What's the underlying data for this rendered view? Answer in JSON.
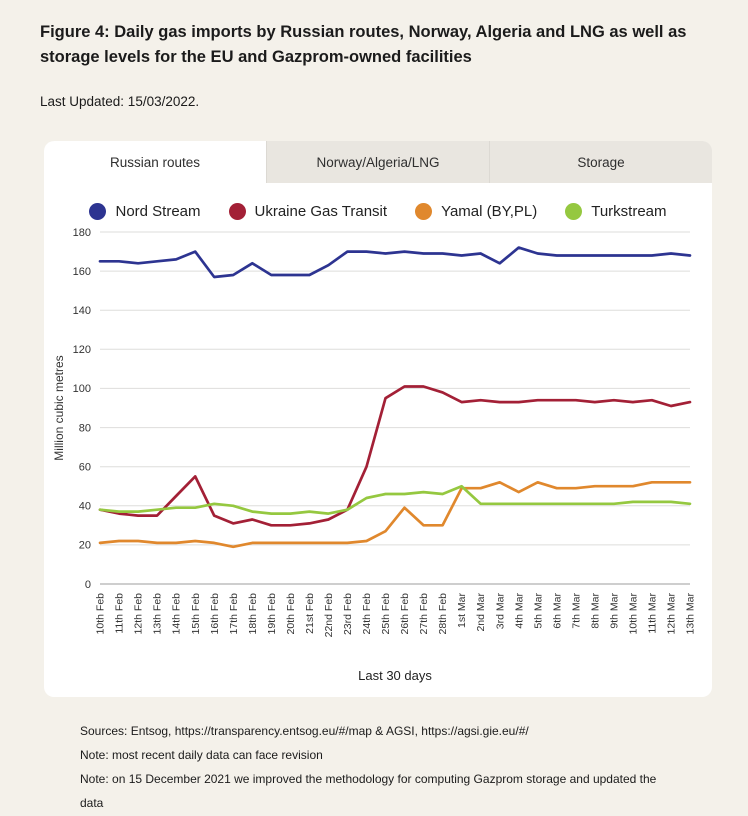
{
  "header": {
    "title": "Figure 4: Daily gas imports by Russian routes, Norway, Algeria and LNG as well as storage levels for the EU and Gazprom-owned facilities",
    "last_updated": "Last Updated: 15/03/2022."
  },
  "tabs": {
    "items": [
      {
        "label": "Russian routes",
        "active": true
      },
      {
        "label": "Norway/Algeria/LNG",
        "active": false
      },
      {
        "label": "Storage",
        "active": false
      }
    ]
  },
  "chart_data": {
    "type": "line",
    "title": "",
    "xlabel": "Last 30 days",
    "ylabel": "Million cubic metres",
    "ylim": [
      0,
      180
    ],
    "ytick": 20,
    "grid": true,
    "legend_position": "top",
    "categories": [
      "10th Feb",
      "11th Feb",
      "12th Feb",
      "13th Feb",
      "14th Feb",
      "15th Feb",
      "16th Feb",
      "17th Feb",
      "18th Feb",
      "19th Feb",
      "20th Feb",
      "21st Feb",
      "22nd Feb",
      "23rd Feb",
      "24th Feb",
      "25th Feb",
      "26th Feb",
      "27th Feb",
      "28th Feb",
      "1st Mar",
      "2nd Mar",
      "3rd Mar",
      "4th Mar",
      "5th Mar",
      "6th Mar",
      "7th Mar",
      "8th Mar",
      "9th Mar",
      "10th Mar",
      "11th Mar",
      "12th Mar",
      "13th Mar"
    ],
    "series": [
      {
        "name": "Nord Stream",
        "color": "#2d3491",
        "values": [
          165,
          165,
          164,
          165,
          166,
          170,
          157,
          158,
          164,
          158,
          158,
          158,
          163,
          170,
          170,
          169,
          170,
          169,
          169,
          168,
          169,
          164,
          172,
          169,
          168,
          168,
          168,
          168,
          168,
          168,
          169,
          168
        ]
      },
      {
        "name": "Ukraine Gas Transit",
        "color": "#a32036",
        "values": [
          38,
          36,
          35,
          35,
          45,
          55,
          35,
          31,
          33,
          30,
          30,
          31,
          33,
          38,
          60,
          95,
          101,
          101,
          98,
          93,
          94,
          93,
          93,
          94,
          94,
          94,
          93,
          94,
          93,
          94,
          91,
          93
        ]
      },
      {
        "name": "Yamal (BY,PL)",
        "color": "#e0882d",
        "values": [
          21,
          22,
          22,
          21,
          21,
          22,
          21,
          19,
          21,
          21,
          21,
          21,
          21,
          21,
          22,
          27,
          39,
          30,
          30,
          49,
          49,
          52,
          47,
          52,
          49,
          49,
          50,
          50,
          50,
          52,
          52,
          52
        ]
      },
      {
        "name": "Turkstream",
        "color": "#95c840",
        "values": [
          38,
          37,
          37,
          38,
          39,
          39,
          41,
          40,
          37,
          36,
          36,
          37,
          36,
          38,
          44,
          46,
          46,
          47,
          46,
          50,
          41,
          41,
          41,
          41,
          41,
          41,
          41,
          41,
          42,
          42,
          42,
          41
        ]
      }
    ]
  },
  "footer": {
    "sources": "Sources: Entsog,  https://transparency.entsog.eu/#/map  &  AGSI,  https://agsi.gie.eu/#/",
    "note1": "Note: most recent daily data can face revision",
    "note2": "Note: on 15 December 2021 we improved the methodology for computing Gazprom storage and updated the data"
  }
}
